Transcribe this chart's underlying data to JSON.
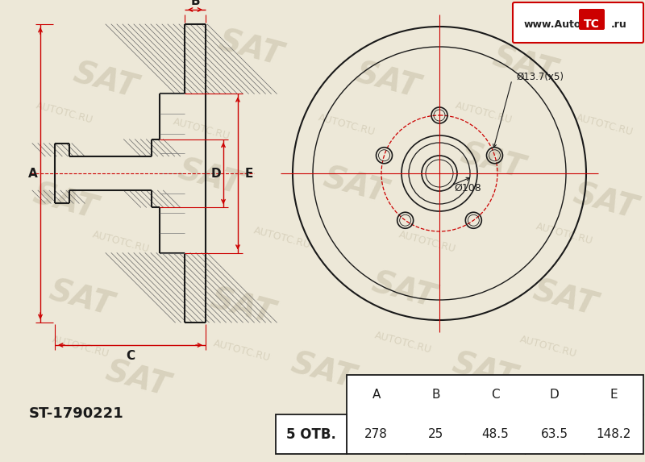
{
  "bg_color": "#ede8d8",
  "line_color": "#1a1a1a",
  "red_color": "#cc0000",
  "part_number": "ST-1790221",
  "holes_label": "5 ОТВ.",
  "label_dia108": "Ø108",
  "label_dia137": "Ø13.7(x5)",
  "table_headers": [
    "A",
    "B",
    "C",
    "D",
    "E"
  ],
  "table_values": [
    "278",
    "25",
    "48.5",
    "63.5",
    "148.2"
  ],
  "logo_text": "www.Auto",
  "logo_tc": "TC",
  "logo_ru": ".ru",
  "dim_labels": [
    "A",
    "B",
    "C",
    "D",
    "E"
  ],
  "watermark_color": "#c8c0a8",
  "scale": 1.0
}
